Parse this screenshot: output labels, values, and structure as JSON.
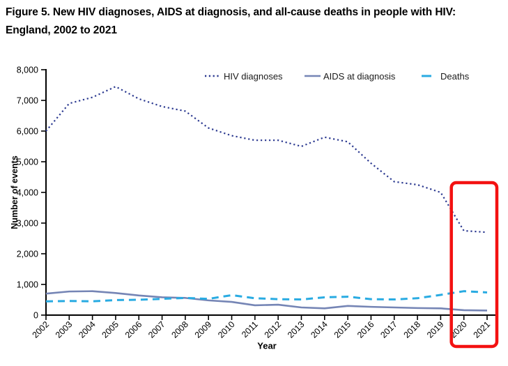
{
  "chart_data": {
    "type": "line",
    "title": "Figure 5. New HIV diagnoses, AIDS at diagnosis, and all-cause deaths in people with HIV: England, 2002 to 2021",
    "x": [
      2002,
      2003,
      2004,
      2005,
      2006,
      2007,
      2008,
      2009,
      2010,
      2011,
      2012,
      2013,
      2014,
      2015,
      2016,
      2017,
      2018,
      2019,
      2020,
      2021
    ],
    "series": [
      {
        "name": "HIV diagnoses",
        "style": "dotted",
        "color": "#2B3990",
        "values": [
          6000,
          6900,
          7100,
          7450,
          7050,
          6800,
          6650,
          6100,
          5850,
          5700,
          5700,
          5500,
          5800,
          5650,
          4950,
          4350,
          4250,
          4000,
          2750,
          2700
        ]
      },
      {
        "name": "AIDS at diagnosis",
        "style": "solid",
        "color": "#7585B5",
        "values": [
          700,
          770,
          780,
          720,
          640,
          580,
          560,
          480,
          430,
          320,
          340,
          250,
          220,
          300,
          270,
          250,
          230,
          220,
          160,
          150
        ]
      },
      {
        "name": "Deaths",
        "style": "dashed",
        "color": "#29ABE2",
        "values": [
          450,
          460,
          450,
          490,
          500,
          530,
          560,
          530,
          650,
          550,
          520,
          510,
          580,
          600,
          520,
          510,
          550,
          660,
          780,
          740
        ]
      }
    ],
    "xlabel": "Year",
    "ylabel": "Number of events",
    "ylim": [
      0,
      8000
    ],
    "ytick_step": 1000,
    "ytick_labels": [
      "0",
      "1,000",
      "2,000",
      "3,000",
      "4,000",
      "5,000",
      "6,000",
      "7,000",
      "8,000"
    ],
    "grid": false,
    "legend_position": "top-inside",
    "axis_color": "#000000",
    "annotation": {
      "type": "highlight-box",
      "color": "#F31111",
      "x_range": [
        2020,
        2021
      ],
      "note": "red rectangle highlighting years 2020 and 2021"
    }
  }
}
